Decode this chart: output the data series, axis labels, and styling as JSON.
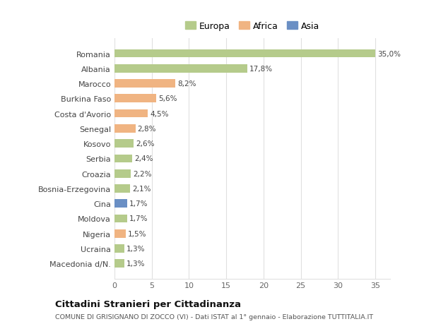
{
  "countries": [
    "Romania",
    "Albania",
    "Marocco",
    "Burkina Faso",
    "Costa d'Avorio",
    "Senegal",
    "Kosovo",
    "Serbia",
    "Croazia",
    "Bosnia-Erzegovina",
    "Cina",
    "Moldova",
    "Nigeria",
    "Ucraina",
    "Macedonia d/N."
  ],
  "values": [
    35.0,
    17.8,
    8.2,
    5.6,
    4.5,
    2.8,
    2.6,
    2.4,
    2.2,
    2.1,
    1.7,
    1.7,
    1.5,
    1.3,
    1.3
  ],
  "labels": [
    "35,0%",
    "17,8%",
    "8,2%",
    "5,6%",
    "4,5%",
    "2,8%",
    "2,6%",
    "2,4%",
    "2,2%",
    "2,1%",
    "1,7%",
    "1,7%",
    "1,5%",
    "1,3%",
    "1,3%"
  ],
  "continents": [
    "Europa",
    "Europa",
    "Africa",
    "Africa",
    "Africa",
    "Africa",
    "Europa",
    "Europa",
    "Europa",
    "Europa",
    "Asia",
    "Europa",
    "Africa",
    "Europa",
    "Europa"
  ],
  "colors": {
    "Europa": "#b5cb8b",
    "Africa": "#f0b482",
    "Asia": "#6a8fc4"
  },
  "xlim": [
    0,
    37
  ],
  "xticks": [
    0,
    5,
    10,
    15,
    20,
    25,
    30,
    35
  ],
  "title": "Cittadini Stranieri per Cittadinanza",
  "subtitle": "COMUNE DI GRISIGNANO DI ZOCCO (VI) - Dati ISTAT al 1° gennaio - Elaborazione TUTTITALIA.IT",
  "background_color": "#ffffff",
  "plot_bg_color": "#ffffff",
  "grid_color": "#e0e0e0"
}
